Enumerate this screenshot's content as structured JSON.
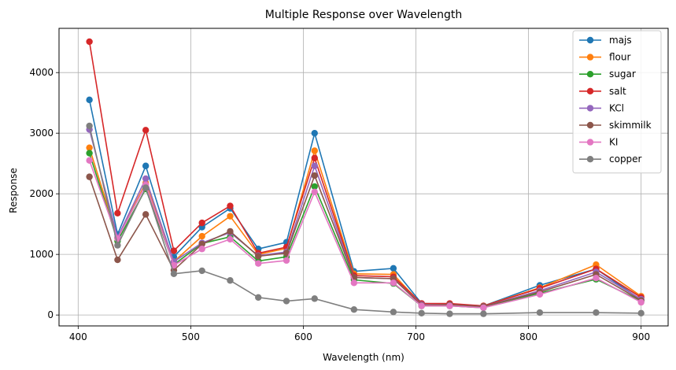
{
  "chart_data": {
    "type": "line",
    "title": "Multiple Response over Wavelength",
    "xlabel": "Wavelength (nm)",
    "ylabel": "Response",
    "xlim": [
      383,
      924
    ],
    "ylim": [
      -180,
      4730
    ],
    "xticks": [
      400,
      500,
      600,
      700,
      800,
      900
    ],
    "yticks": [
      0,
      1000,
      2000,
      3000,
      4000
    ],
    "grid": true,
    "legend_position": "top-right",
    "x": [
      410,
      435,
      460,
      485,
      510,
      535,
      560,
      585,
      610,
      645,
      680,
      705,
      730,
      760,
      810,
      860,
      900
    ],
    "series": [
      {
        "name": "majs",
        "color": "#1f77b4",
        "values": [
          3550,
          1330,
          2460,
          960,
          1450,
          1760,
          1090,
          1200,
          3000,
          720,
          770,
          190,
          180,
          150,
          490,
          760,
          250
        ]
      },
      {
        "name": "flour",
        "color": "#ff7f0e",
        "values": [
          2760,
          1270,
          2180,
          880,
          1300,
          1630,
          1000,
          1100,
          2710,
          680,
          670,
          180,
          170,
          150,
          450,
          830,
          310
        ]
      },
      {
        "name": "sugar",
        "color": "#2ca02c",
        "values": [
          2670,
          1220,
          2080,
          830,
          1180,
          1290,
          890,
          960,
          2120,
          580,
          520,
          150,
          150,
          120,
          360,
          590,
          230
        ]
      },
      {
        "name": "salt",
        "color": "#d62728",
        "values": [
          4510,
          1680,
          3050,
          1060,
          1520,
          1800,
          1020,
          1120,
          2590,
          650,
          630,
          190,
          190,
          150,
          440,
          760,
          290
        ]
      },
      {
        "name": "KCl",
        "color": "#9467bd",
        "values": [
          3060,
          1280,
          2250,
          880,
          1190,
          1360,
          980,
          1040,
          2460,
          620,
          600,
          170,
          170,
          140,
          400,
          710,
          260
        ]
      },
      {
        "name": "skimmilk",
        "color": "#8c564b",
        "values": [
          2280,
          910,
          1660,
          740,
          1170,
          1380,
          970,
          1020,
          2300,
          620,
          600,
          160,
          170,
          140,
          380,
          670,
          240
        ]
      },
      {
        "name": "KI",
        "color": "#e377c2",
        "values": [
          2550,
          1260,
          2150,
          820,
          1090,
          1250,
          850,
          900,
          2030,
          530,
          530,
          150,
          150,
          120,
          340,
          610,
          210
        ]
      },
      {
        "name": "copper",
        "color": "#7f7f7f",
        "values": [
          3120,
          1150,
          2100,
          680,
          730,
          570,
          290,
          230,
          270,
          90,
          50,
          30,
          20,
          20,
          40,
          40,
          30
        ]
      }
    ]
  }
}
